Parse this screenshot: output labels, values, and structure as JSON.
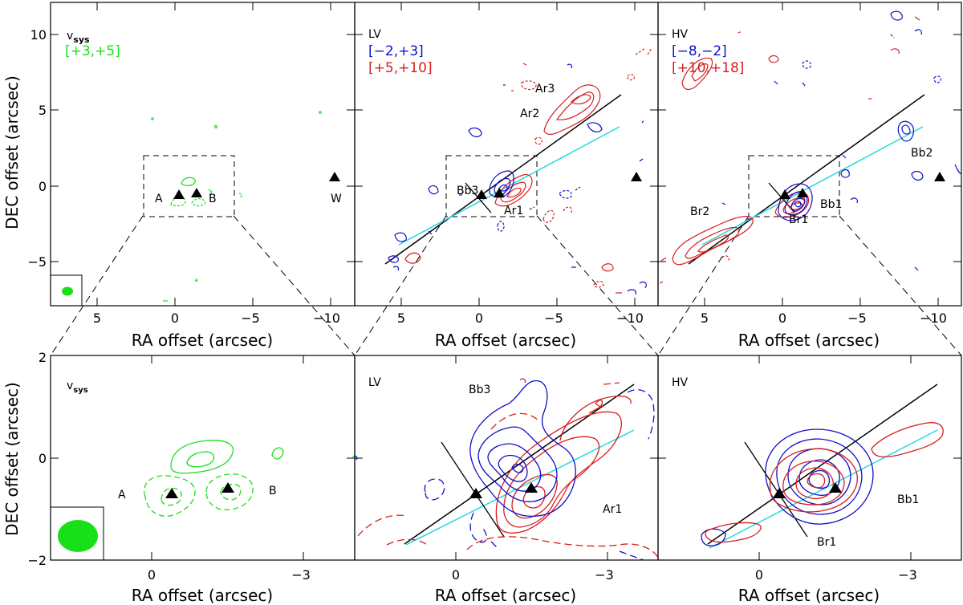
{
  "figure": {
    "ylabel": "DEC offset (arcsec)",
    "xlabel": "RA offset (arcsec)",
    "colors": {
      "blue": "#1010c8",
      "red": "#d81e1e",
      "green": "#18e018",
      "cyan": "#28d8e0",
      "black": "#000000"
    }
  },
  "chart_data": [
    {
      "type": "contour",
      "panel": "top-left",
      "label_main": "v",
      "label_sub": "sys",
      "range_label": "[+3,+5]",
      "xlim": [
        8,
        -11.5
      ],
      "ylim": [
        -8,
        12
      ],
      "xticks": [
        5,
        0,
        -5,
        -10
      ],
      "xticklabels": [
        "5",
        "0",
        "−5",
        "−10"
      ],
      "yticks": [
        -5,
        0,
        5,
        10
      ],
      "yticklabels": [
        "−5",
        "0",
        "5",
        "10"
      ],
      "sources": [
        {
          "name": "A",
          "x": -0.4,
          "y": -0.7
        },
        {
          "name": "B",
          "x": -1.5,
          "y": -0.6
        },
        {
          "name": "W",
          "x": -10.6,
          "y": 0.6
        }
      ],
      "zoom_box": {
        "x": [
          2.0,
          -3.8
        ],
        "y": [
          -2.0,
          2.0
        ]
      },
      "beam": "ellipse-lower-left"
    },
    {
      "type": "contour",
      "panel": "top-middle",
      "label_main": "LV",
      "blue_range": "[−2,+3]",
      "red_range": "[+5,+10]",
      "xlim": [
        8,
        -11.5
      ],
      "ylim": [
        -8,
        12
      ],
      "xticks": [
        5,
        0,
        -5,
        -10
      ],
      "xticklabels": [
        "5",
        "0",
        "−5",
        "−10"
      ],
      "annotations": [
        "Ar3",
        "Ar2",
        "Bb3",
        "Ar1"
      ],
      "sources": [
        {
          "x": -0.4,
          "y": -0.7
        },
        {
          "x": -1.5,
          "y": -0.6
        },
        {
          "x": -10.6,
          "y": 0.6
        }
      ],
      "zoom_box": {
        "x": [
          2.0,
          -3.8
        ],
        "y": [
          -2.0,
          2.0
        ]
      }
    },
    {
      "type": "contour",
      "panel": "top-right",
      "label_main": "HV",
      "blue_range": "[−8,−2]",
      "red_range": "[+10,+18]",
      "xlim": [
        8,
        -11.5
      ],
      "ylim": [
        -8,
        12
      ],
      "xticks": [
        5,
        0,
        -5,
        -10
      ],
      "xticklabels": [
        "5",
        "0",
        "−5",
        "−10"
      ],
      "annotations": [
        "Bb2",
        "Br2",
        "Br1",
        "Bb1"
      ],
      "sources": [
        {
          "x": -0.4,
          "y": -0.7
        },
        {
          "x": -1.5,
          "y": -0.6
        },
        {
          "x": -10.6,
          "y": 0.6
        }
      ],
      "zoom_box": {
        "x": [
          2.0,
          -3.8
        ],
        "y": [
          -2.0,
          2.0
        ]
      }
    },
    {
      "type": "contour",
      "panel": "bottom-left",
      "label_main": "v",
      "label_sub": "sys",
      "xlim": [
        2,
        -4
      ],
      "ylim": [
        -2,
        2
      ],
      "xticks": [
        0,
        -3
      ],
      "xticklabels": [
        "0",
        "−3"
      ],
      "yticks": [
        -2,
        0,
        2
      ],
      "yticklabels": [
        "−2",
        "0",
        "2"
      ],
      "annotations": [
        "A",
        "B"
      ]
    },
    {
      "type": "contour",
      "panel": "bottom-middle",
      "label_main": "LV",
      "xlim": [
        2,
        -4
      ],
      "ylim": [
        -2,
        2
      ],
      "xticks": [
        0,
        -3
      ],
      "xticklabels": [
        "0",
        "−3"
      ],
      "annotations": [
        "Bb3",
        "Ar1"
      ]
    },
    {
      "type": "contour",
      "panel": "bottom-right",
      "label_main": "HV",
      "xlim": [
        2,
        -4
      ],
      "ylim": [
        -2,
        2
      ],
      "xticks": [
        0,
        -3
      ],
      "xticklabels": [
        "0",
        "−3"
      ],
      "annotations": [
        "Bb1",
        "Br1"
      ]
    }
  ]
}
